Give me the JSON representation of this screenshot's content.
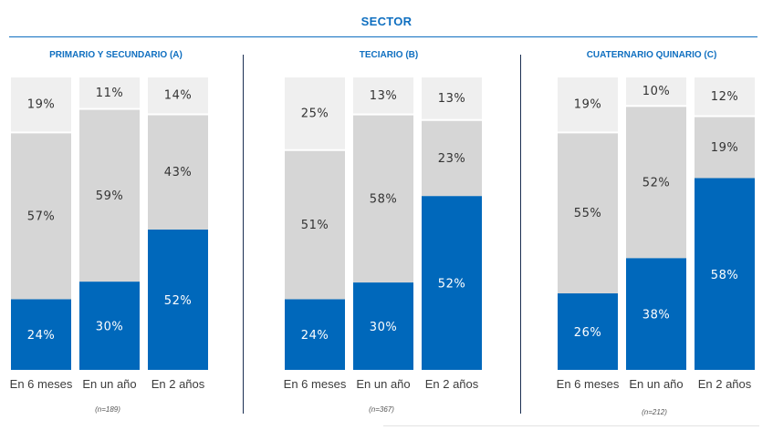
{
  "title": "SECTOR",
  "colors": {
    "accent": "#0f6fc0",
    "bottom": "#0068bb",
    "middle": "#d6d6d6",
    "top": "#efefef",
    "label_on_dark": "#ffffff",
    "label_on_light": "#333333"
  },
  "chart_data": [
    {
      "type": "bar",
      "stacked": true,
      "title": "PRIMARIO Y SECUNDARIO (A)",
      "note": "(n=189)",
      "categories": [
        "En 6 meses",
        "En un año",
        "En 2 años"
      ],
      "series": [
        {
          "values": [
            24,
            30,
            52
          ]
        },
        {
          "values": [
            57,
            59,
            43
          ]
        },
        {
          "values": [
            19,
            11,
            14
          ]
        }
      ],
      "labels": [
        [
          "24%",
          "57%",
          "19%"
        ],
        [
          "30%",
          "59%",
          "11%"
        ],
        [
          "52%",
          "43%",
          "14%"
        ]
      ]
    },
    {
      "type": "bar",
      "stacked": true,
      "title": "TECIARIO (B)",
      "note": "(n=367)",
      "categories": [
        "En 6 meses",
        "En un año",
        "En 2 años"
      ],
      "series": [
        {
          "values": [
            24,
            30,
            52
          ]
        },
        {
          "values": [
            51,
            58,
            23
          ]
        },
        {
          "values": [
            25,
            13,
            13
          ]
        }
      ],
      "labels": [
        [
          "24%",
          "51%",
          "25%"
        ],
        [
          "30%",
          "58%",
          "13%"
        ],
        [
          "52%",
          "23%",
          "13%"
        ]
      ]
    },
    {
      "type": "bar",
      "stacked": true,
      "title": "CUATERNARIO  QUINARIO (C)",
      "note": "(n=212)",
      "categories": [
        "En 6 meses",
        "En un año",
        "En 2 años"
      ],
      "series": [
        {
          "values": [
            26,
            38,
            58
          ]
        },
        {
          "values": [
            55,
            52,
            19
          ]
        },
        {
          "values": [
            19,
            10,
            12
          ]
        }
      ],
      "labels": [
        [
          "26%",
          "55%",
          "19%"
        ],
        [
          "38%",
          "52%",
          "10%"
        ],
        [
          "58%",
          "19%",
          "12%"
        ]
      ]
    }
  ]
}
